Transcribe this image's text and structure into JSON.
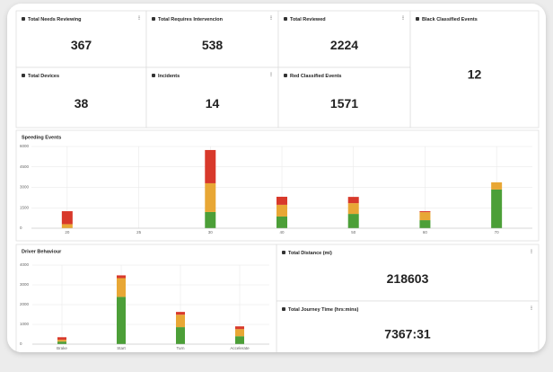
{
  "tiles": [
    {
      "title": "Total Needs Reviewing",
      "value": 367
    },
    {
      "title": "Total Requires Intervencion",
      "value": 538
    },
    {
      "title": "Total Reviewed",
      "value": 2224
    },
    {
      "title": "Black Classified Events",
      "value": 12
    },
    {
      "title": "Total Devices",
      "value": 38
    },
    {
      "title": "Incidents",
      "value": 14
    },
    {
      "title": "Red Classified Events",
      "value": 1571
    },
    {
      "title": "Total Distance (mi)",
      "value": 218603
    },
    {
      "title": "Total Journey Time (hrs:mins)",
      "value": "7367:31"
    }
  ],
  "chart_data": [
    {
      "type": "bar",
      "title": "Speeding Events",
      "stacked": true,
      "grid": true,
      "categories": [
        "20",
        "25",
        "30",
        "40",
        "50",
        "60",
        "70"
      ],
      "series": [
        {
          "color": "#4c9f38",
          "values": [
            0,
            0,
            1190,
            860,
            1050,
            590,
            2840
          ]
        },
        {
          "color": "#e8a735",
          "values": [
            300,
            0,
            2110,
            860,
            790,
            590,
            530
          ]
        },
        {
          "color": "#d8392b",
          "values": [
            950,
            0,
            2440,
            590,
            460,
            70,
            0
          ]
        }
      ],
      "ylim": [
        0,
        6000
      ],
      "yticks": [
        0,
        1500,
        3000,
        4500,
        6000
      ]
    },
    {
      "type": "bar",
      "title": "Driver Behaviour",
      "stacked": true,
      "grid": true,
      "categories": [
        "Brake",
        "Start",
        "Turn",
        "Accelerate"
      ],
      "series": [
        {
          "color": "#4c9f38",
          "values": [
            130,
            2390,
            860,
            400
          ]
        },
        {
          "color": "#e8a735",
          "values": [
            90,
            950,
            630,
            360
          ]
        },
        {
          "color": "#d8392b",
          "values": [
            130,
            140,
            140,
            140
          ]
        }
      ],
      "ylim": [
        0,
        4000
      ],
      "yticks": [
        0,
        1000,
        2000,
        3000,
        4000
      ]
    }
  ]
}
